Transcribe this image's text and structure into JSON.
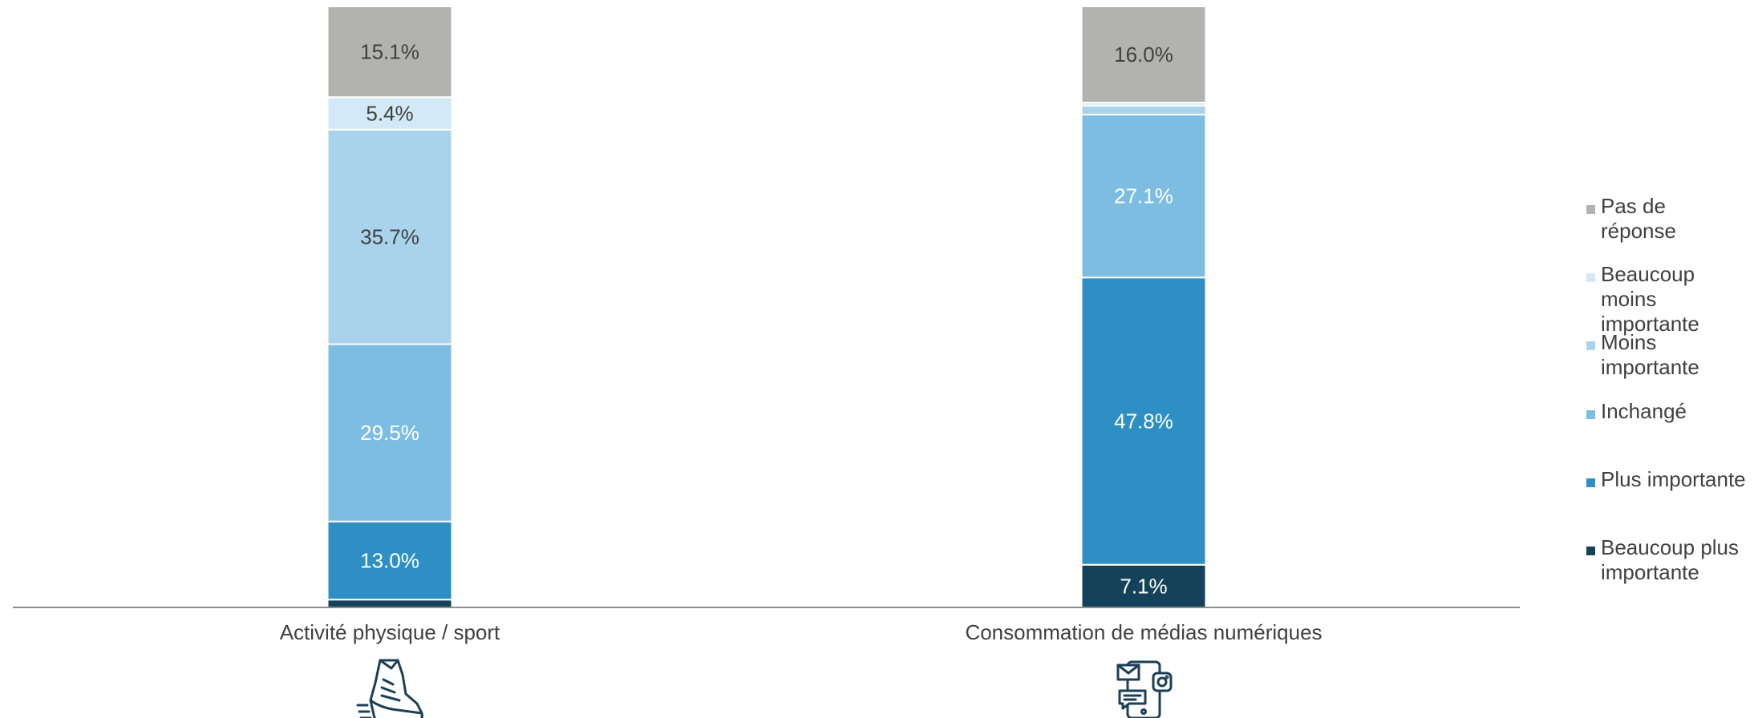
{
  "chart_data": {
    "type": "bar",
    "stacked": true,
    "orientation": "vertical",
    "categories": [
      "Activité physique / sport",
      "Consommation de médias numériques"
    ],
    "category_icons": [
      "running-shoe-icon",
      "smartphone-media-icon"
    ],
    "ylim": [
      0,
      100
    ],
    "grid": false,
    "legend_position": "right",
    "series": [
      {
        "name": "Beaucoup plus importante",
        "color": "#14425a",
        "values": [
          1.3,
          7.1
        ],
        "labels": [
          "",
          "7.1%"
        ],
        "label_color": "#ffffff"
      },
      {
        "name": "Plus importante",
        "color": "#2e8fc4",
        "values": [
          13.0,
          47.8
        ],
        "labels": [
          "13.0%",
          "47.8%"
        ],
        "label_color": "#ffffff"
      },
      {
        "name": "Inchangé",
        "color": "#7dbde2",
        "values": [
          29.5,
          27.1
        ],
        "labels": [
          "29.5%",
          "27.1%"
        ],
        "label_color": "#ffffff"
      },
      {
        "name": "Moins importante",
        "color": "#a9d3ec",
        "values": [
          35.7,
          1.5
        ],
        "labels": [
          "35.7%",
          ""
        ],
        "label_color": "#404040"
      },
      {
        "name": "Beaucoup moins importante",
        "color": "#d3e9f6",
        "values": [
          5.4,
          0.5
        ],
        "labels": [
          "5.4%",
          ""
        ],
        "label_color": "#404040"
      },
      {
        "name": "Pas de réponse",
        "color": "#b2b3ae",
        "values": [
          15.1,
          16.0
        ],
        "labels": [
          "15.1%",
          "16.0%"
        ],
        "label_color": "#404040"
      }
    ],
    "legend_order": [
      "Pas de réponse",
      "Beaucoup moins importante",
      "Moins importante",
      "Inchangé",
      "Plus importante",
      "Beaucoup plus importante"
    ]
  }
}
